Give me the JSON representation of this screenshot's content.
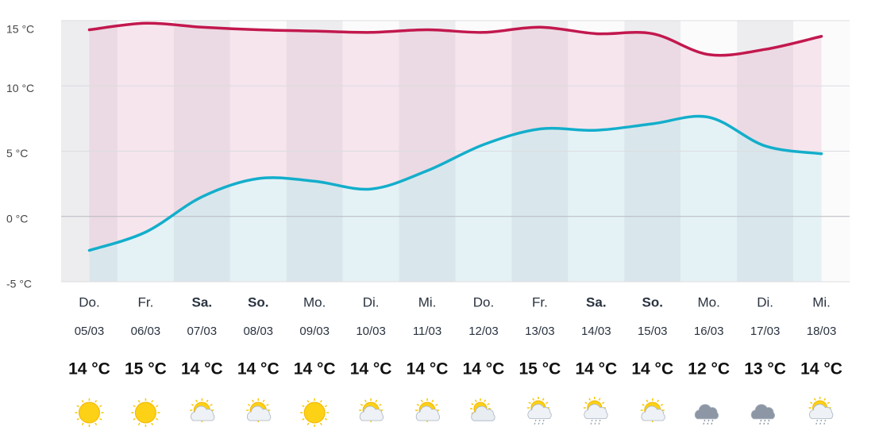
{
  "chart_data": {
    "type": "line",
    "categories": [
      "Do.",
      "Fr.",
      "Sa.",
      "So.",
      "Mo.",
      "Di.",
      "Mi.",
      "Do.",
      "Fr.",
      "Sa.",
      "So.",
      "Mo.",
      "Di.",
      "Mi."
    ],
    "dates": [
      "05/03",
      "06/03",
      "07/03",
      "08/03",
      "09/03",
      "10/03",
      "11/03",
      "12/03",
      "13/03",
      "14/03",
      "15/03",
      "16/03",
      "17/03",
      "18/03"
    ],
    "temp_labels": [
      "14 °C",
      "15 °C",
      "14 °C",
      "14 °C",
      "14 °C",
      "14 °C",
      "14 °C",
      "14 °C",
      "15 °C",
      "14 °C",
      "14 °C",
      "12 °C",
      "13 °C",
      "14 °C"
    ],
    "series": [
      {
        "color": "#c2184e",
        "values": [
          14.3,
          14.8,
          14.5,
          14.3,
          14.2,
          14.1,
          14.3,
          14.1,
          14.5,
          14.0,
          14.0,
          12.4,
          12.8,
          13.8
        ]
      },
      {
        "color": "#13aecb",
        "values": [
          -2.6,
          -1.2,
          1.5,
          2.9,
          2.7,
          2.1,
          3.5,
          5.5,
          6.7,
          6.6,
          7.1,
          7.6,
          5.4,
          4.8
        ]
      }
    ],
    "ylim": [
      -5,
      15
    ],
    "yticks": [
      {
        "value": 15,
        "label": "15 °C"
      },
      {
        "value": 10,
        "label": "10 °C"
      },
      {
        "value": 5,
        "label": "5 °C"
      },
      {
        "value": 0,
        "label": "0 °C"
      },
      {
        "value": -5,
        "label": "-5 °C"
      }
    ],
    "grid": true
  }
}
